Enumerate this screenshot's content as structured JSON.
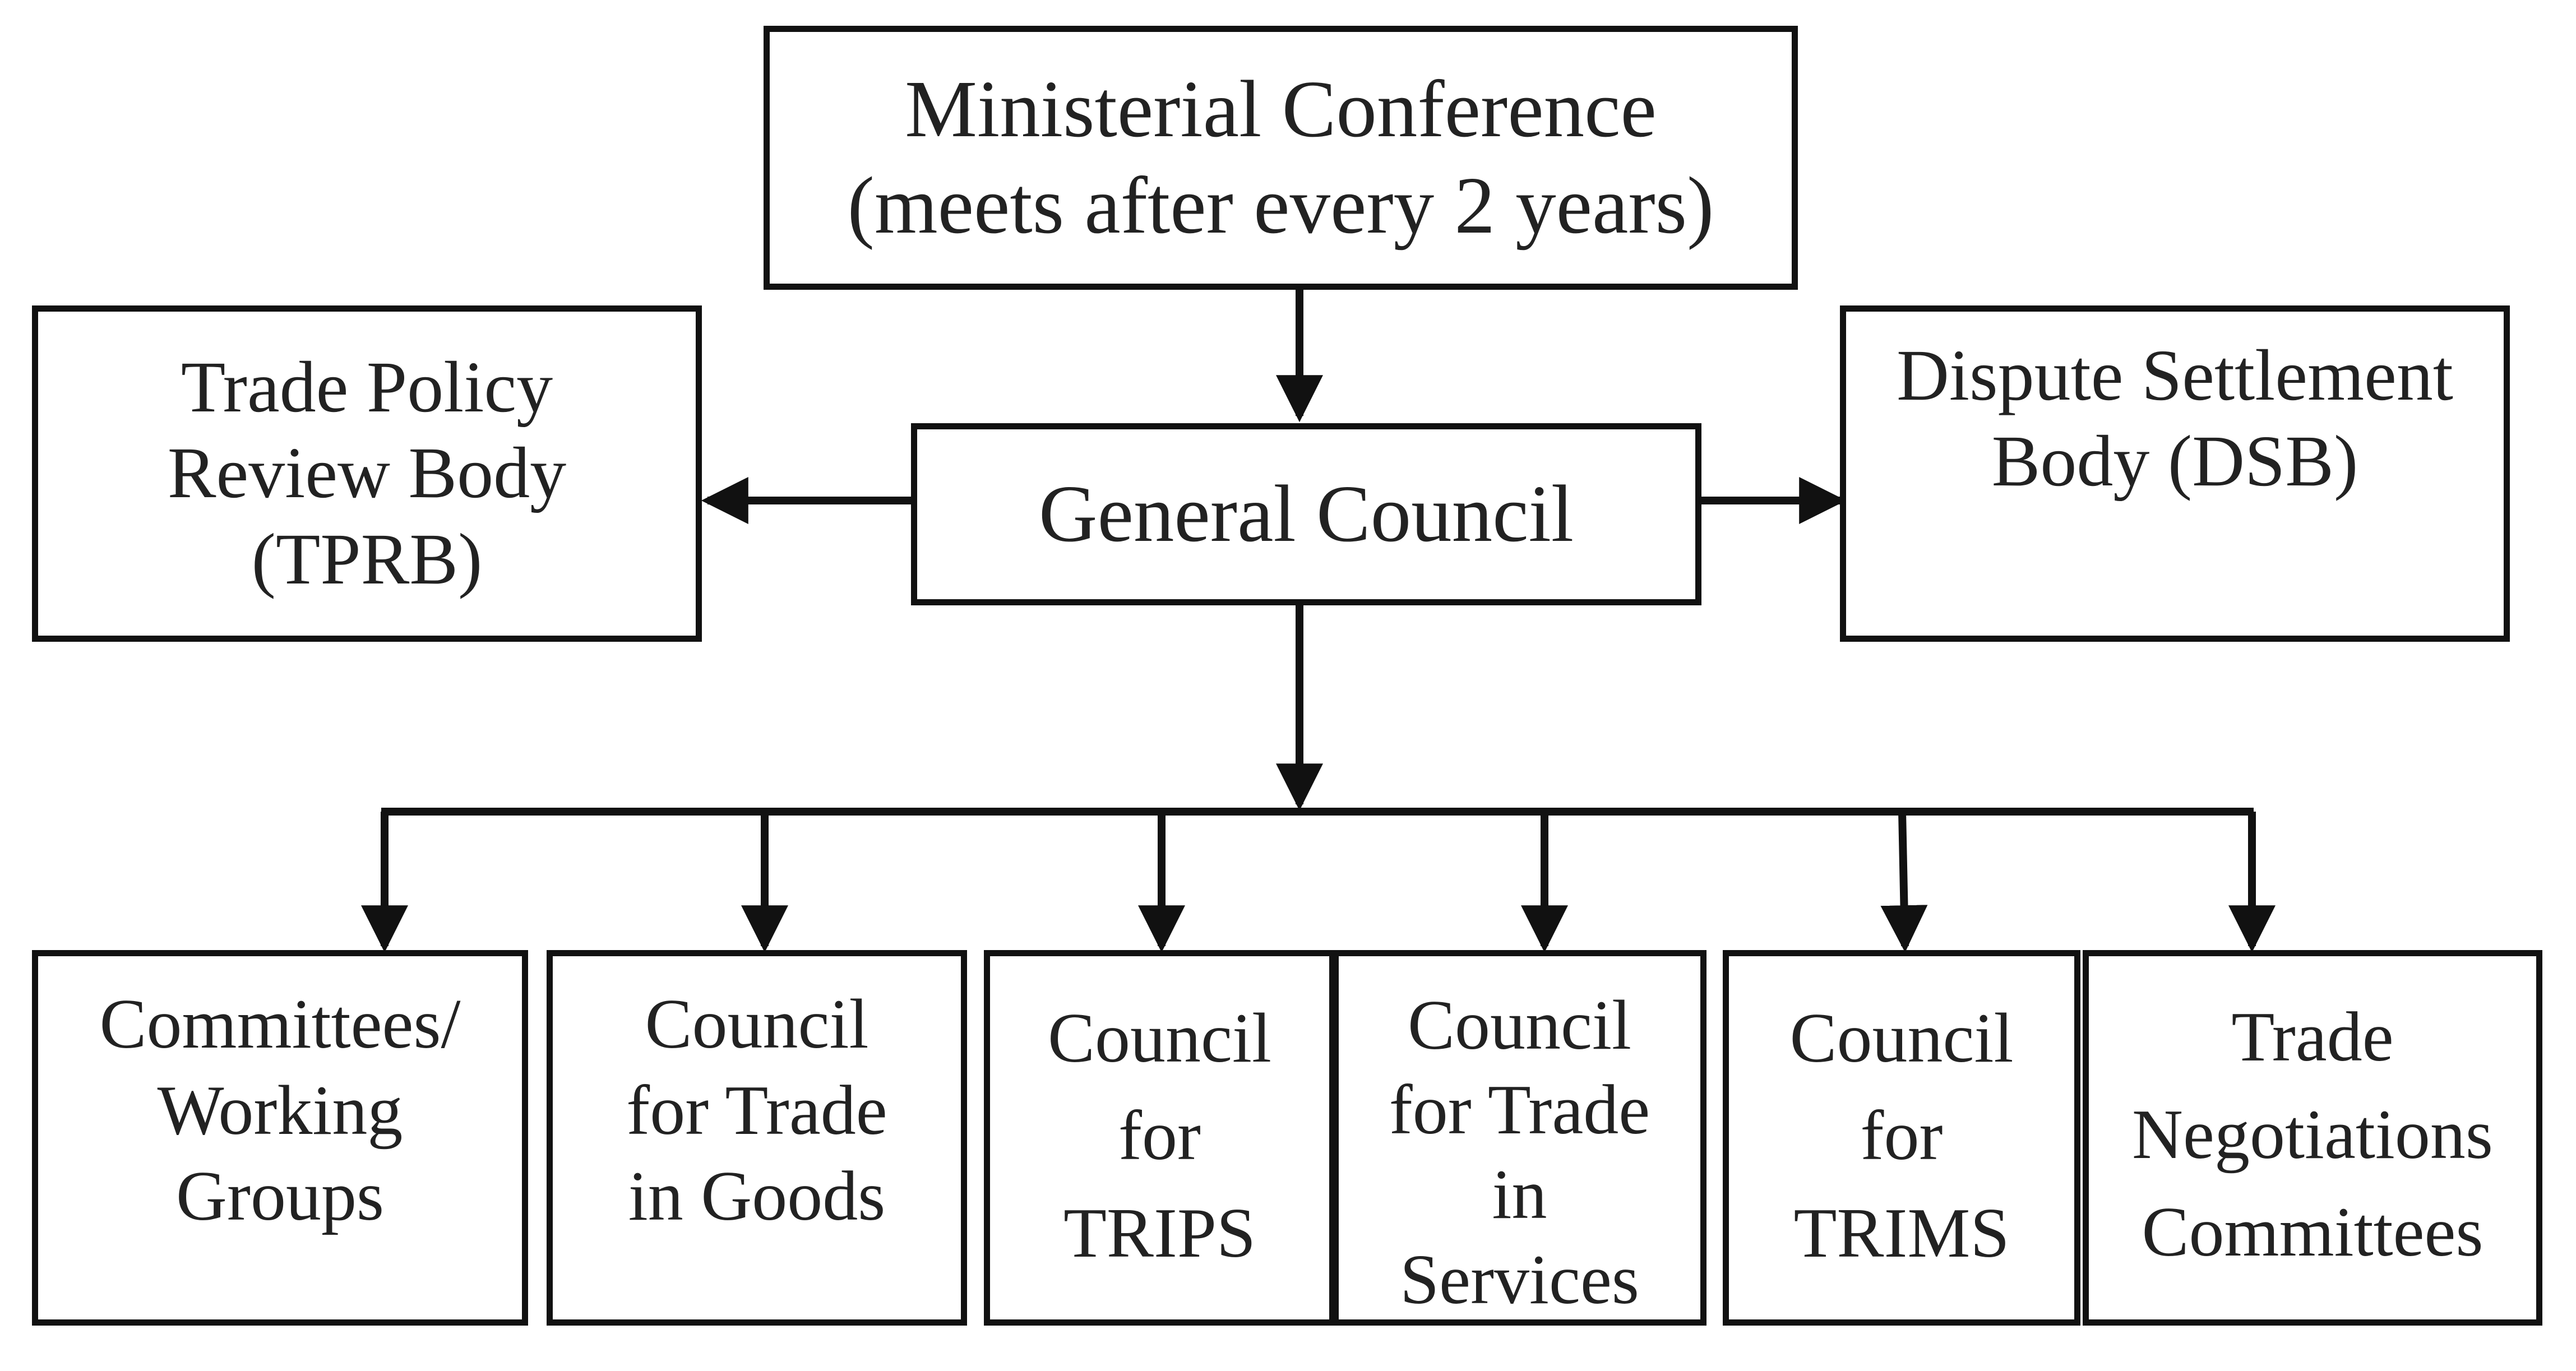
{
  "diagram": {
    "top": {
      "lines": [
        "Ministerial Conference",
        "(meets after every 2 years)"
      ]
    },
    "center": {
      "lines": [
        "General Council"
      ]
    },
    "left": {
      "lines": [
        "Trade Policy",
        "Review Body",
        "(TPRB)"
      ]
    },
    "right": {
      "lines": [
        "Dispute Settlement",
        "Body (DSB)"
      ]
    },
    "children": [
      {
        "lines": [
          "Committees/",
          "Working",
          "Groups"
        ]
      },
      {
        "lines": [
          "Council",
          "for Trade",
          "in Goods"
        ]
      },
      {
        "lines": [
          "Council",
          "for",
          "TRIPS"
        ]
      },
      {
        "lines": [
          "Council",
          "for Trade",
          "in",
          "Services"
        ]
      },
      {
        "lines": [
          "Council",
          "for",
          "TRIMS"
        ]
      },
      {
        "lines": [
          "Trade",
          "Negotiations",
          "Committees"
        ]
      }
    ],
    "colors": {
      "stroke": "#111111",
      "text": "#222222",
      "background": "#ffffff"
    }
  }
}
